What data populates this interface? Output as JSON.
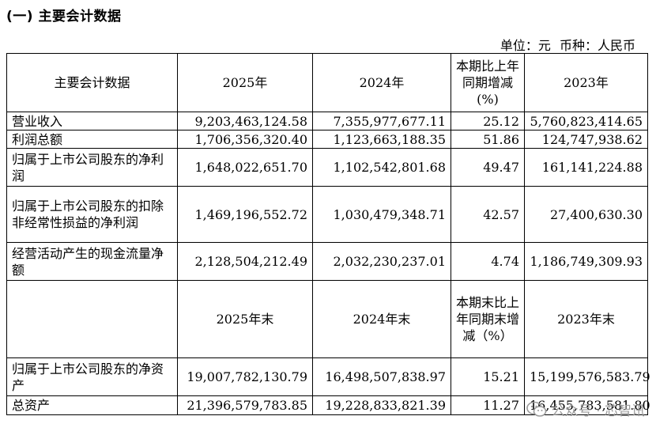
{
  "heading": "(一) 主要会计数据",
  "unit_label": "单位：元",
  "currency_label": "币种：人民币",
  "table1": {
    "headers": [
      "主要会计数据",
      "2025年",
      "2024年",
      "本期比上年同期增减(%)",
      "2023年"
    ],
    "rows": [
      {
        "label": "营业收入",
        "v2025": "9,203,463,124.58",
        "v2024": "7,355,977,677.11",
        "change": "25.12",
        "v2023": "5,760,823,414.65"
      },
      {
        "label": "利润总额",
        "v2025": "1,706,356,320.40",
        "v2024": "1,123,663,188.35",
        "change": "51.86",
        "v2023": "124,747,938.62"
      },
      {
        "label": "归属于上市公司股东的净利润",
        "v2025": "1,648,022,651.70",
        "v2024": "1,102,542,801.68",
        "change": "49.47",
        "v2023": "161,141,224.88"
      },
      {
        "label": "归属于上市公司股东的扣除非经常性损益的净利润",
        "v2025": "1,469,196,552.72",
        "v2024": "1,030,479,348.71",
        "change": "42.57",
        "v2023": "27,400,630.30"
      },
      {
        "label": "经营活动产生的现金流量净额",
        "v2025": "2,128,504,212.49",
        "v2024": "2,032,230,237.01",
        "change": "4.74",
        "v2023": "1,186,749,309.93"
      }
    ]
  },
  "table2": {
    "headers": [
      "",
      "2025年末",
      "2024年末",
      "本期末比上年同期末增减（%）",
      "2023年末"
    ],
    "rows": [
      {
        "label": "归属于上市公司股东的净资产",
        "v2025": "19,007,782,130.79",
        "v2024": "16,498,507,838.97",
        "change": "15.21",
        "v2023": "15,199,576,583.79"
      },
      {
        "label": "总资产",
        "v2025": "21,396,579,783.85",
        "v2024": "19,228,833,821.39",
        "change": "11.27",
        "v2023": "16,455,783,581.80"
      }
    ]
  },
  "watermark": "公众号 · 芯智讯"
}
